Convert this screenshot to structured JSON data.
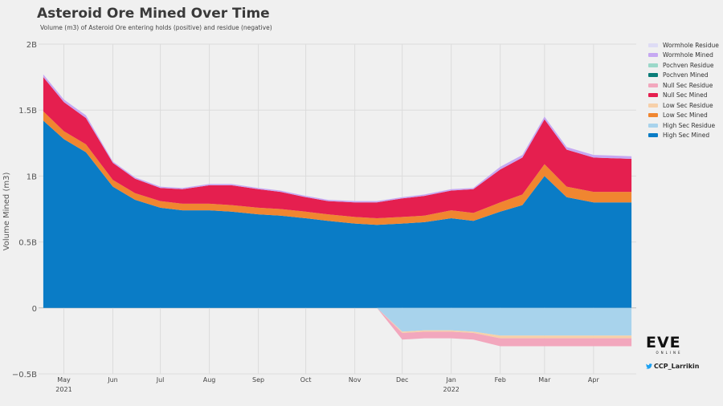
{
  "header": {
    "title": "Asteroid Ore Mined Over Time",
    "subtitle": "Volume (m3) of Asteroid Ore entering holds (positive) and residue (negative)"
  },
  "branding": {
    "logo_text": "EVE",
    "logo_sub": "ONLINE",
    "twitter_handle": "CCP_Larrikin"
  },
  "chart_data": {
    "type": "area",
    "stacked": true,
    "ylabel": "Volume Mined (m3)",
    "ylim": [
      -0.5,
      2.0
    ],
    "yunit": "B",
    "yticks": [
      {
        "value": 2.0,
        "label": "2B"
      },
      {
        "value": 1.5,
        "label": "1.5B"
      },
      {
        "value": 1.0,
        "label": "1B"
      },
      {
        "value": 0.5,
        "label": "0.5B"
      },
      {
        "value": 0.0,
        "label": "0"
      },
      {
        "value": -0.5,
        "label": "−0.5B"
      }
    ],
    "xlim": [
      "2021-04-15",
      "2022-04-28"
    ],
    "xticks": [
      {
        "date": "2021-05-01",
        "label": "May",
        "sublabel": "2021"
      },
      {
        "date": "2021-06-01",
        "label": "Jun",
        "sublabel": ""
      },
      {
        "date": "2021-07-01",
        "label": "Jul",
        "sublabel": ""
      },
      {
        "date": "2021-08-01",
        "label": "Aug",
        "sublabel": ""
      },
      {
        "date": "2021-09-01",
        "label": "Sep",
        "sublabel": ""
      },
      {
        "date": "2021-10-01",
        "label": "Oct",
        "sublabel": ""
      },
      {
        "date": "2021-11-01",
        "label": "Nov",
        "sublabel": ""
      },
      {
        "date": "2021-12-01",
        "label": "Dec",
        "sublabel": ""
      },
      {
        "date": "2022-01-01",
        "label": "Jan",
        "sublabel": "2022"
      },
      {
        "date": "2022-02-01",
        "label": "Feb",
        "sublabel": ""
      },
      {
        "date": "2022-03-01",
        "label": "Mar",
        "sublabel": ""
      },
      {
        "date": "2022-04-01",
        "label": "Apr",
        "sublabel": ""
      }
    ],
    "grid": true,
    "legend_position": "right",
    "x": [
      "2021-04-18",
      "2021-05-01",
      "2021-05-15",
      "2021-06-01",
      "2021-06-15",
      "2021-07-01",
      "2021-07-15",
      "2021-08-01",
      "2021-08-15",
      "2021-09-01",
      "2021-09-15",
      "2021-10-01",
      "2021-10-15",
      "2021-11-01",
      "2021-11-15",
      "2021-12-01",
      "2021-12-15",
      "2022-01-01",
      "2022-01-15",
      "2022-02-01",
      "2022-02-15",
      "2022-03-01",
      "2022-03-15",
      "2022-04-01",
      "2022-04-25"
    ],
    "series": [
      {
        "name": "High Sec Mined",
        "color": "#0a7cc6",
        "sign": 1,
        "values": [
          1.42,
          1.28,
          1.18,
          0.92,
          0.82,
          0.76,
          0.74,
          0.74,
          0.73,
          0.71,
          0.7,
          0.68,
          0.66,
          0.64,
          0.63,
          0.64,
          0.65,
          0.68,
          0.66,
          0.73,
          0.78,
          1.0,
          0.84,
          0.8,
          0.8
        ]
      },
      {
        "name": "High Sec Residue",
        "color": "#a8d3ec",
        "sign": -1,
        "values": [
          0,
          0,
          0,
          0,
          0,
          0,
          0,
          0,
          0,
          0,
          0,
          0,
          0,
          0,
          0,
          0.18,
          0.17,
          0.17,
          0.18,
          0.21,
          0.21,
          0.21,
          0.21,
          0.21,
          0.21
        ]
      },
      {
        "name": "Low Sec Mined",
        "color": "#f08630",
        "sign": 1,
        "values": [
          0.07,
          0.06,
          0.06,
          0.05,
          0.05,
          0.05,
          0.05,
          0.05,
          0.05,
          0.05,
          0.05,
          0.05,
          0.05,
          0.05,
          0.05,
          0.05,
          0.05,
          0.06,
          0.06,
          0.07,
          0.08,
          0.09,
          0.08,
          0.08,
          0.08
        ]
      },
      {
        "name": "Low Sec Residue",
        "color": "#f7d0a9",
        "sign": -1,
        "values": [
          0,
          0,
          0,
          0,
          0,
          0,
          0,
          0,
          0,
          0,
          0,
          0,
          0,
          0,
          0,
          0.01,
          0.01,
          0.01,
          0.01,
          0.02,
          0.02,
          0.02,
          0.02,
          0.02,
          0.02
        ]
      },
      {
        "name": "Null Sec Mined",
        "color": "#e51f4f",
        "sign": 1,
        "values": [
          0.26,
          0.22,
          0.2,
          0.13,
          0.11,
          0.1,
          0.11,
          0.14,
          0.15,
          0.14,
          0.13,
          0.11,
          0.1,
          0.11,
          0.12,
          0.14,
          0.15,
          0.15,
          0.18,
          0.25,
          0.28,
          0.34,
          0.28,
          0.26,
          0.25
        ]
      },
      {
        "name": "Null Sec Residue",
        "color": "#f2a7bd",
        "sign": -1,
        "values": [
          0,
          0,
          0,
          0,
          0,
          0,
          0,
          0,
          0,
          0,
          0,
          0,
          0,
          0,
          0,
          0.05,
          0.05,
          0.05,
          0.05,
          0.06,
          0.06,
          0.06,
          0.06,
          0.06,
          0.06
        ]
      },
      {
        "name": "Pochven Mined",
        "color": "#0b7d78",
        "sign": 1,
        "values": [
          0,
          0,
          0,
          0,
          0,
          0,
          0,
          0,
          0,
          0,
          0,
          0,
          0,
          0,
          0,
          0,
          0,
          0,
          0,
          0,
          0,
          0,
          0,
          0,
          0
        ]
      },
      {
        "name": "Pochven Residue",
        "color": "#9bd8c9",
        "sign": -1,
        "values": [
          0,
          0,
          0,
          0,
          0,
          0,
          0,
          0,
          0,
          0,
          0,
          0,
          0,
          0,
          0,
          0,
          0,
          0,
          0,
          0,
          0,
          0,
          0,
          0,
          0
        ]
      },
      {
        "name": "Wormhole Mined",
        "color": "#c6a8f2",
        "sign": 1,
        "values": [
          0.02,
          0.02,
          0.02,
          0.01,
          0.01,
          0.01,
          0.01,
          0.01,
          0.01,
          0.01,
          0.01,
          0.01,
          0.01,
          0.01,
          0.01,
          0.01,
          0.01,
          0.01,
          0.01,
          0.02,
          0.02,
          0.02,
          0.02,
          0.02,
          0.02
        ]
      },
      {
        "name": "Wormhole Residue",
        "color": "#dedcf5",
        "sign": -1,
        "values": [
          0,
          0,
          0,
          0,
          0,
          0,
          0,
          0,
          0,
          0,
          0,
          0,
          0,
          0,
          0,
          0,
          0,
          0,
          0,
          0,
          0,
          0,
          0,
          0,
          0
        ]
      }
    ],
    "legend_order": [
      "Wormhole Residue",
      "Wormhole Mined",
      "Pochven Residue",
      "Pochven Mined",
      "Null Sec Residue",
      "Null Sec Mined",
      "Low Sec Residue",
      "Low Sec Mined",
      "High Sec Residue",
      "High Sec Mined"
    ]
  }
}
